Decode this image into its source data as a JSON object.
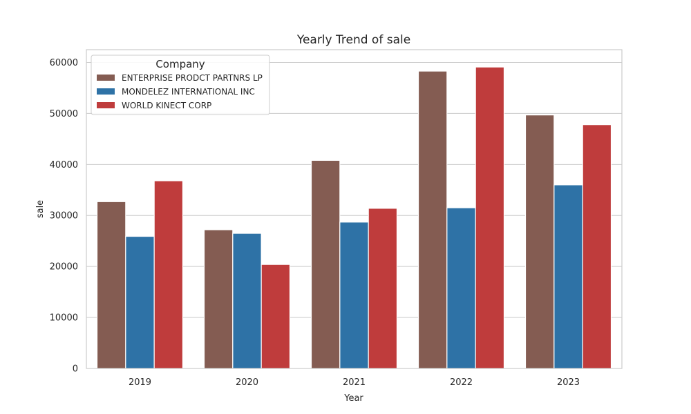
{
  "chart_data": {
    "type": "bar",
    "title": "Yearly Trend of sale",
    "xlabel": "Year",
    "ylabel": "sale",
    "categories": [
      "2019",
      "2020",
      "2021",
      "2022",
      "2023"
    ],
    "ylim": [
      0,
      62500
    ],
    "yticks": [
      0,
      10000,
      20000,
      30000,
      40000,
      50000,
      60000
    ],
    "grid": true,
    "legend": {
      "title": "Company",
      "placement": "top-left"
    },
    "series": [
      {
        "name": "ENTERPRISE PRODCT PARTNRS LP",
        "color": "#845c52",
        "values": [
          32700,
          27200,
          40800,
          58300,
          49700
        ]
      },
      {
        "name": "MONDELEZ INTERNATIONAL INC",
        "color": "#2e72a6",
        "values": [
          25900,
          26500,
          28700,
          31500,
          36000
        ]
      },
      {
        "name": "WORLD KINECT CORP",
        "color": "#bf3c3c",
        "values": [
          36800,
          20400,
          31400,
          59100,
          47800
        ]
      }
    ]
  }
}
